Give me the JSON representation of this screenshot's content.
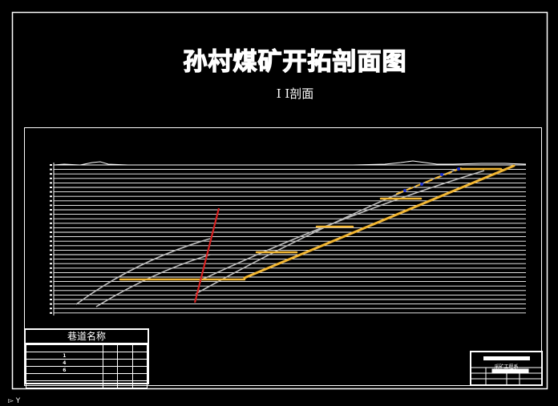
{
  "drawing": {
    "title": "孙村煤矿开拓剖面图",
    "subtitle": "I  I剖面",
    "colors": {
      "background": "#000000",
      "grid": "#ffffff",
      "seam": "#bdbdbd",
      "roadway": "#f2b632",
      "fault": "#d82020",
      "marker": "#1a2fd0"
    }
  },
  "legend_table": {
    "title": "巷道名称",
    "rows": [
      [
        "",
        "",
        "",
        ""
      ],
      [
        "1",
        "",
        "",
        ""
      ],
      [
        "4",
        "",
        "",
        ""
      ],
      [
        "6",
        "",
        "",
        ""
      ],
      [
        "",
        "",
        "",
        ""
      ],
      [
        "",
        "",
        "",
        ""
      ]
    ]
  },
  "title_block": {
    "org": "采矿工程系"
  },
  "ucs_icon": "ucs-axis-icon"
}
